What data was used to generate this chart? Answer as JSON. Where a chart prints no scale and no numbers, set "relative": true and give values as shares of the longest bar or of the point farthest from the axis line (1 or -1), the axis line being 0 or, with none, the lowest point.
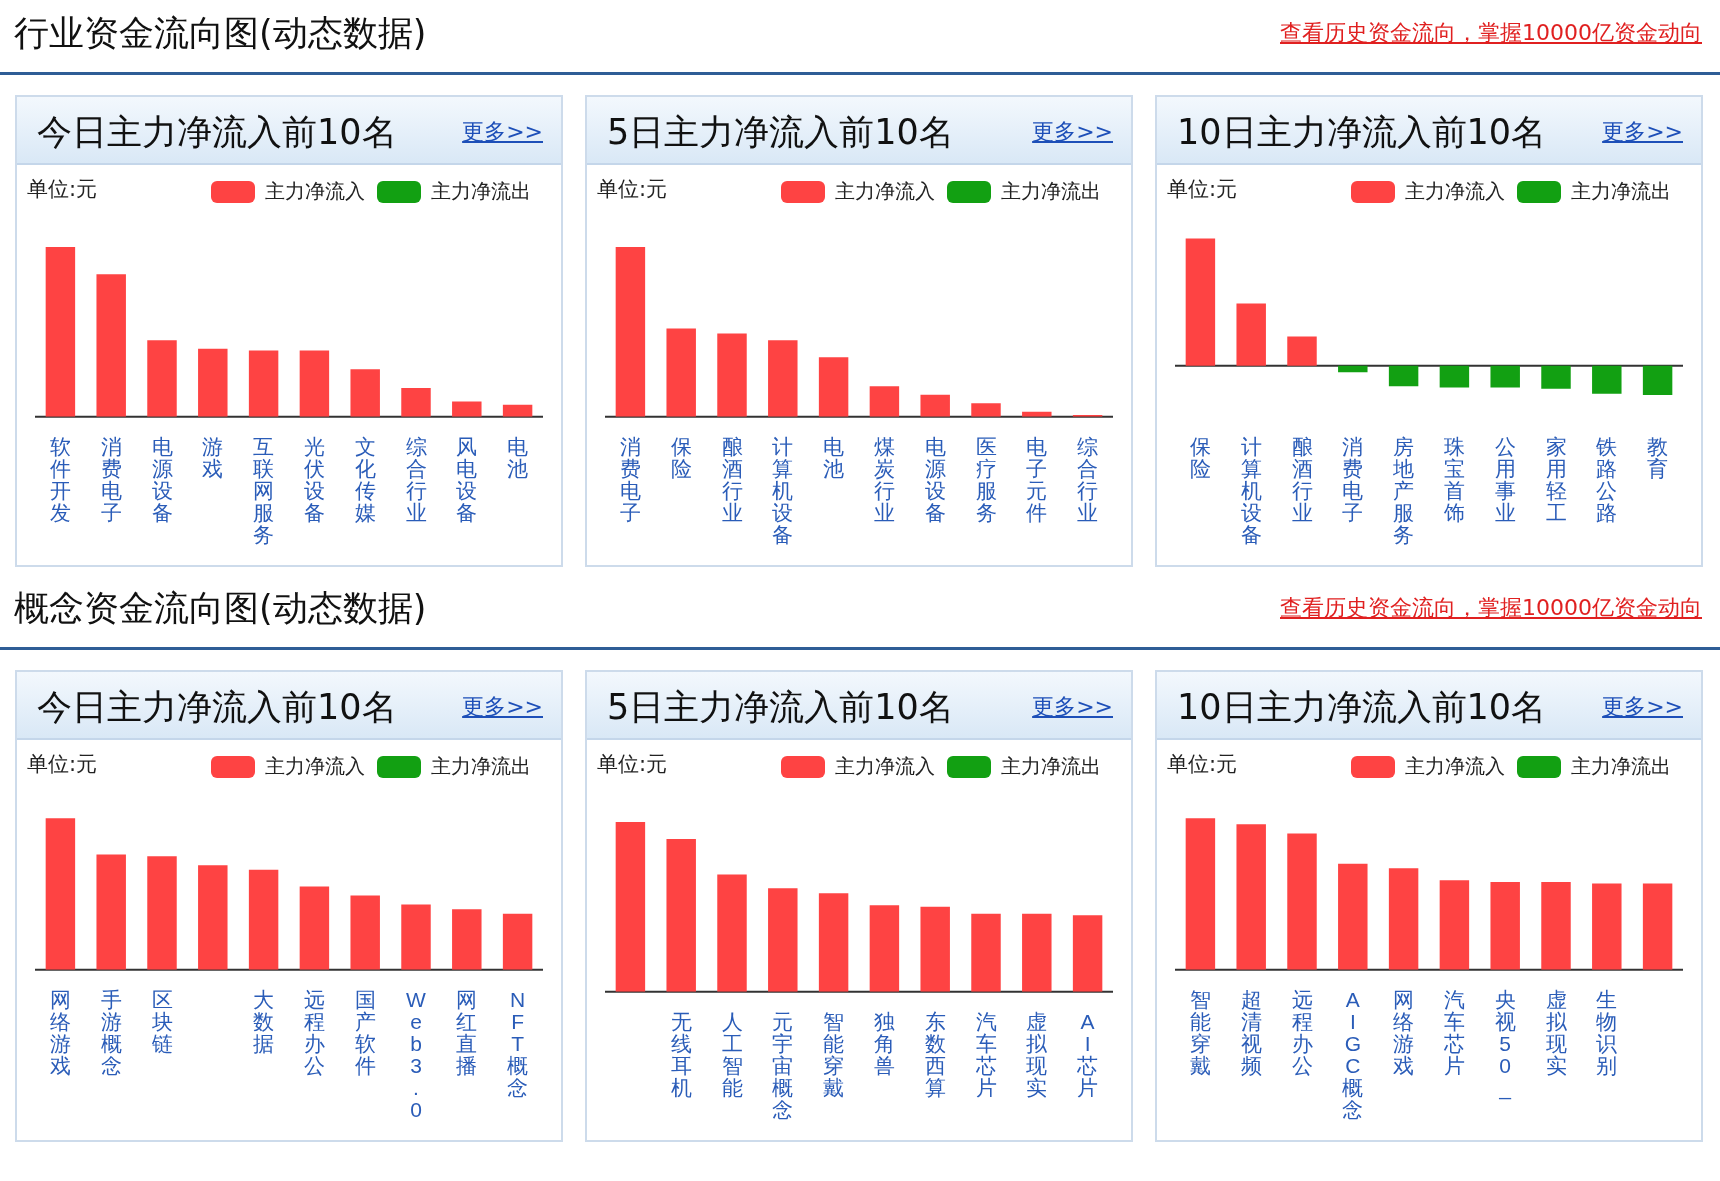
{
  "chart_data": [
    {
      "type": "other",
      "title": "行业资金流向图(动态数据)",
      "annotations": [
        "查看历史资金流向，掌握10000亿资金动向"
      ]
    },
    {
      "type": "bar",
      "title": "今日主力净流入前10名",
      "ylabel": "单位:元",
      "annotations": [
        "更多>>"
      ],
      "relative": true,
      "stacked": true,
      "legend": "top right",
      "categories": [
        "软件开发",
        "消费电子",
        "电源设备",
        "游戏",
        "互联网服务",
        "光伏设备",
        "文化传媒",
        "综合行业",
        "风电设备",
        "电池"
      ],
      "series": [
        {
          "name": "主力净流入",
          "color": "#fe4343",
          "values": [
            1,
            0.84,
            0.45,
            0.4,
            0.39,
            0.39,
            0.28,
            0.17,
            0.09,
            0.07
          ]
        },
        {
          "name": "主力净流出",
          "color": "#12a012",
          "values": [
            null,
            null,
            null,
            null,
            null,
            null,
            null,
            null,
            null,
            null
          ]
        }
      ]
    },
    {
      "type": "bar",
      "title": "5日主力净流入前10名",
      "ylabel": "单位:元",
      "annotations": [
        "更多>>"
      ],
      "relative": true,
      "stacked": true,
      "legend": "top right",
      "categories": [
        "消费电子",
        "保险",
        "酿酒行业",
        "计算机设备",
        "电池",
        "煤炭行业",
        "电源设备",
        "医疗服务",
        "电子元件",
        "综合行业"
      ],
      "series": [
        {
          "name": "主力净流入",
          "color": "#fe4343",
          "values": [
            1,
            0.52,
            0.49,
            0.45,
            0.35,
            0.18,
            0.13,
            0.08,
            0.03,
            0.01
          ]
        },
        {
          "name": "主力净流出",
          "color": "#12a012",
          "values": [
            null,
            null,
            null,
            null,
            null,
            null,
            null,
            null,
            null,
            null
          ]
        }
      ]
    },
    {
      "type": "bar",
      "title": "10日主力净流入前10名",
      "ylabel": "单位:元",
      "annotations": [
        "更多>>"
      ],
      "relative": true,
      "stacked": true,
      "legend": "top right",
      "categories": [
        "保险",
        "计算机设备",
        "酿酒行业",
        "消费电子",
        "房地产服务",
        "珠宝首饰",
        "公用事业",
        "家用轻工",
        "铁路公路",
        "教育"
      ],
      "series": [
        {
          "name": "主力净流入",
          "color": "#fe4343",
          "values": [
            1,
            0.49,
            0.23,
            null,
            null,
            null,
            null,
            null,
            null,
            null
          ]
        },
        {
          "name": "主力净流出",
          "color": "#12a012",
          "values": [
            null,
            null,
            null,
            -0.05,
            -0.16,
            -0.17,
            -0.17,
            -0.18,
            -0.22,
            -0.23
          ]
        }
      ]
    },
    {
      "type": "other",
      "title": "概念资金流向图(动态数据)",
      "annotations": [
        "查看历史资金流向，掌握10000亿资金动向"
      ]
    },
    {
      "type": "bar",
      "title": "今日主力净流入前10名",
      "ylabel": "单位:元",
      "annotations": [
        "更多>>"
      ],
      "relative": true,
      "stacked": true,
      "legend": "top right",
      "categories": [
        "网络游戏",
        "手游概念",
        "区块链",
        null,
        "大数据",
        "远程办公",
        "国产软件",
        "Web3.0",
        "网红直播",
        "NFT概念"
      ],
      "series": [
        {
          "name": "主力净流入",
          "color": "#fe4343",
          "values": [
            1,
            0.76,
            0.75,
            0.69,
            0.66,
            0.55,
            0.49,
            0.43,
            0.4,
            0.37
          ]
        },
        {
          "name": "主力净流出",
          "color": "#12a012",
          "values": [
            null,
            null,
            null,
            null,
            null,
            null,
            null,
            null,
            null,
            null
          ]
        }
      ]
    },
    {
      "type": "bar",
      "title": "5日主力净流入前10名",
      "ylabel": "单位:元",
      "annotations": [
        "更多>>"
      ],
      "relative": true,
      "stacked": true,
      "legend": "top right",
      "categories": [
        null,
        "无线耳机",
        "人工智能",
        "元宇宙概念",
        "智能穿戴",
        "独角兽",
        "东数西算",
        "汽车芯片",
        "虚拟现实",
        "AI芯片"
      ],
      "series": [
        {
          "name": "主力净流入",
          "color": "#fe4343",
          "values": [
            1,
            0.9,
            0.69,
            0.61,
            0.58,
            0.51,
            0.5,
            0.46,
            0.46,
            0.45
          ]
        },
        {
          "name": "主力净流出",
          "color": "#12a012",
          "values": [
            null,
            null,
            null,
            null,
            null,
            null,
            null,
            null,
            null,
            null
          ]
        }
      ]
    },
    {
      "type": "bar",
      "title": "10日主力净流入前10名",
      "ylabel": "单位:元",
      "annotations": [
        "更多>>"
      ],
      "relative": true,
      "stacked": true,
      "legend": "top right",
      "categories": [
        "智能穿戴",
        "超清视频",
        "远程办公",
        "AIGC概念",
        "网络游戏",
        "汽车芯片",
        "央视50_",
        "虚拟现实",
        "生物识别",
        null
      ],
      "series": [
        {
          "name": "主力净流入",
          "color": "#fe4343",
          "values": [
            1,
            0.96,
            0.9,
            0.7,
            0.67,
            0.59,
            0.58,
            0.58,
            0.57,
            0.57
          ]
        },
        {
          "name": "主力净流出",
          "color": "#12a012",
          "values": [
            null,
            null,
            null,
            null,
            null,
            null,
            null,
            null,
            null,
            null
          ]
        }
      ]
    }
  ]
}
